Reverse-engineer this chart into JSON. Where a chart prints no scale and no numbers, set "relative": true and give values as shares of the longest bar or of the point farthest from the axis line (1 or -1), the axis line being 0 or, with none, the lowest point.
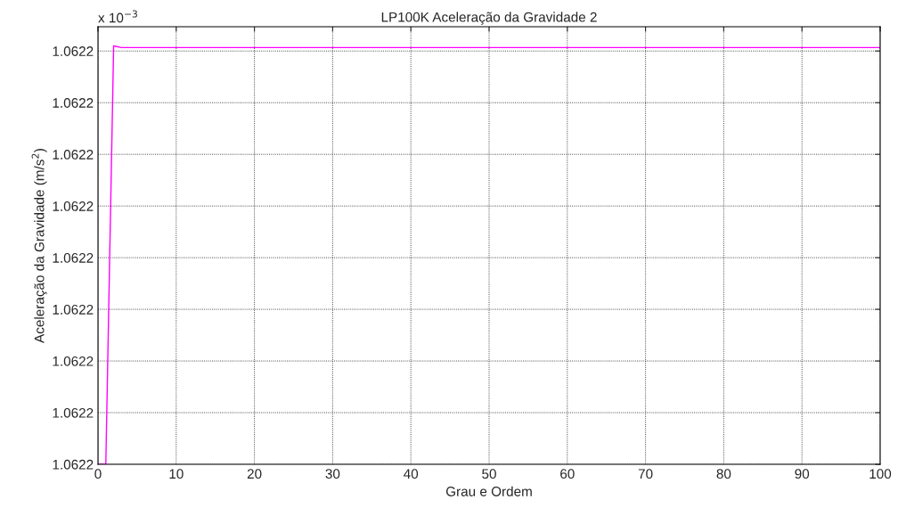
{
  "chart_data": {
    "type": "line",
    "title": "LP100K Aceleração da Gravidade 2",
    "xlabel": "Grau e Ordem",
    "ylabel": "Aceleração da Gravidade (m/s$^{2}$)",
    "annotations": [
      "x 10$^{−3}$",
      "1.0622",
      "1.0622",
      "1.0622",
      "1.0622",
      "1.0622",
      "1.0622",
      "1.0622",
      "1.0622",
      "1.0622"
    ],
    "x": [
      0,
      1,
      2,
      3,
      100
    ],
    "series": [
      {
        "color": "#ff00ff",
        "values": [
          0,
          0,
          1,
          0.996,
          0.996
        ]
      }
    ],
    "relative": true,
    "xlim": [
      0,
      100
    ],
    "xticks": [
      0,
      10,
      20,
      30,
      40,
      50,
      60,
      70,
      80,
      90,
      100
    ],
    "grid": true,
    "legend": false
  }
}
